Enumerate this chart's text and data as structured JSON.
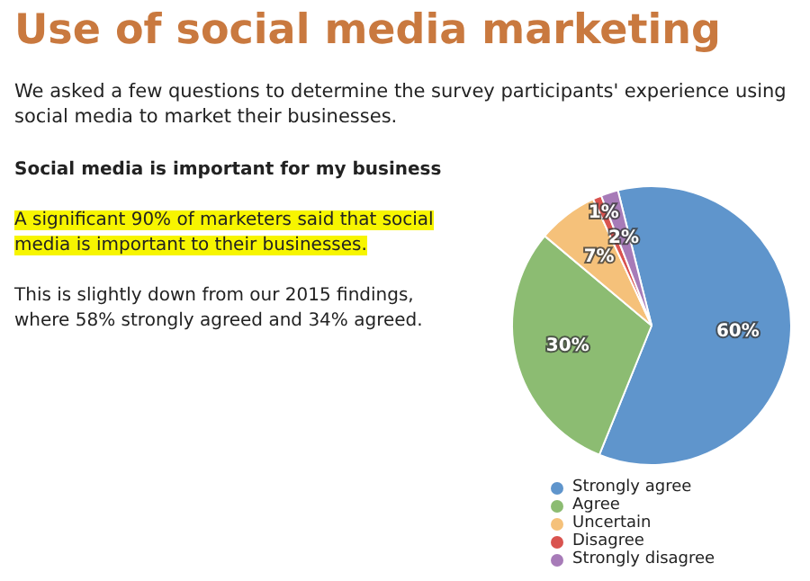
{
  "chart_data": {
    "type": "pie",
    "title": "Use of social media marketing",
    "subtitle": "We asked a few questions to determine the survey participants' experience using social media to market their businesses.",
    "annotations": [
      "Social media is important for my business",
      "A significant 90% of marketers said that social media is important to their businesses.",
      "This is slightly down from our 2015 findings, where 58% strongly agreed and 34% agreed."
    ],
    "categories": [
      "Strongly agree",
      "Agree",
      "Uncertain",
      "Disagree",
      "Strongly disagree"
    ],
    "values": [
      60,
      30,
      7,
      1,
      2
    ],
    "colors": [
      "#5f95cc",
      "#8cbc72",
      "#f5c17a",
      "#d9534f",
      "#a77bb8"
    ],
    "value_labels": [
      "60%",
      "30%",
      "7%",
      "1%",
      "2%"
    ],
    "legend": "bottom"
  }
}
